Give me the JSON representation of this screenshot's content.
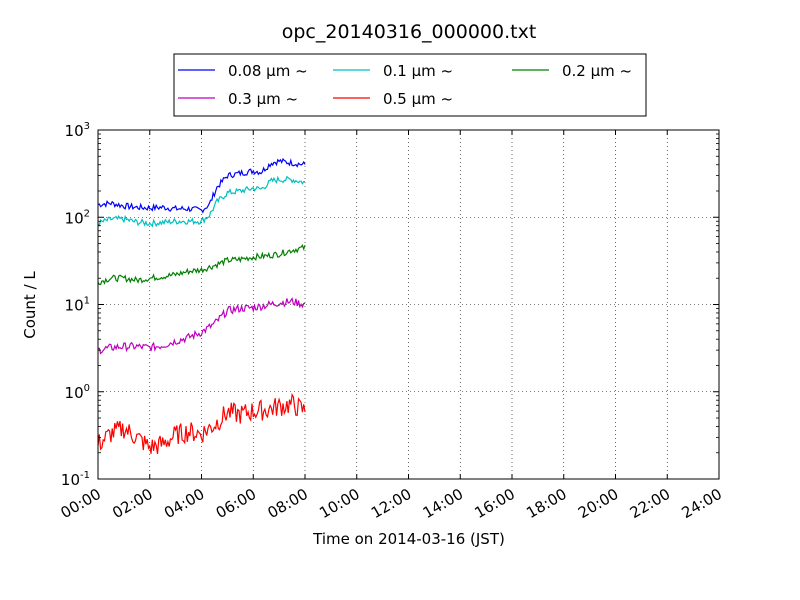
{
  "chart_data": {
    "type": "line",
    "title": "opc_20140316_000000.txt",
    "xlabel": "Time on 2014-03-16 (JST)",
    "ylabel": "Count / L",
    "xlim_hours": [
      0,
      24
    ],
    "x_tick_labels": [
      "00:00",
      "02:00",
      "04:00",
      "06:00",
      "08:00",
      "10:00",
      "12:00",
      "14:00",
      "16:00",
      "18:00",
      "20:00",
      "22:00",
      "24:00"
    ],
    "y_scale": "log",
    "ylim": [
      0.1,
      1000
    ],
    "y_tick_labels": [
      {
        "base": "10",
        "exp": "-1"
      },
      {
        "base": "10",
        "exp": "0"
      },
      {
        "base": "10",
        "exp": "1"
      },
      {
        "base": "10",
        "exp": "2"
      },
      {
        "base": "10",
        "exp": "3"
      }
    ],
    "grid": true,
    "legend_position": "top-center",
    "legend_unit_suffix": "μm ~",
    "series": [
      {
        "name": "0.08",
        "color": "#0000ff",
        "x": [
          0,
          0.5,
          1,
          1.5,
          2,
          2.5,
          3,
          3.5,
          4,
          4.3,
          4.6,
          5,
          5.5,
          6,
          6.3,
          6.7,
          7,
          7.5,
          8
        ],
        "y": [
          140,
          145,
          135,
          130,
          128,
          130,
          125,
          125,
          120,
          140,
          220,
          300,
          320,
          340,
          330,
          420,
          440,
          420,
          400
        ]
      },
      {
        "name": "0.1",
        "color": "#00bfbf",
        "x": [
          0,
          0.5,
          1,
          1.5,
          2,
          2.5,
          3,
          3.5,
          4,
          4.3,
          4.6,
          5,
          5.5,
          6,
          6.3,
          6.7,
          7,
          7.5,
          8
        ],
        "y": [
          85,
          95,
          95,
          88,
          85,
          87,
          90,
          90,
          90,
          105,
          150,
          190,
          200,
          215,
          210,
          260,
          270,
          270,
          250
        ]
      },
      {
        "name": "0.2",
        "color": "#008000",
        "x": [
          0,
          0.5,
          1,
          1.5,
          2,
          2.5,
          3,
          3.5,
          4,
          4.5,
          5,
          5.5,
          6,
          6.5,
          7,
          7.5,
          8
        ],
        "y": [
          18,
          20,
          20,
          19,
          20,
          21,
          22,
          24,
          25,
          28,
          32,
          33,
          35,
          36,
          38,
          42,
          45
        ]
      },
      {
        "name": "0.3",
        "color": "#bf00bf",
        "x": [
          0,
          0.5,
          1,
          1.5,
          2,
          2.5,
          3,
          3.5,
          4,
          4.5,
          5,
          5.5,
          6,
          6.5,
          7,
          7.5,
          8
        ],
        "y": [
          3.0,
          3.2,
          3.3,
          3.3,
          3.2,
          3.4,
          3.8,
          4.2,
          4.8,
          6.0,
          8.5,
          9.0,
          9.2,
          9.8,
          10.5,
          10.8,
          10
        ]
      },
      {
        "name": "0.5",
        "color": "#ff0000",
        "x": [
          0,
          0.5,
          1,
          1.5,
          2,
          2.5,
          3,
          3.5,
          4,
          4.5,
          5,
          5.5,
          6,
          6.5,
          7,
          7.5,
          8
        ],
        "y": [
          0.25,
          0.33,
          0.38,
          0.3,
          0.23,
          0.25,
          0.32,
          0.35,
          0.33,
          0.42,
          0.58,
          0.55,
          0.6,
          0.62,
          0.68,
          0.72,
          0.6
        ]
      }
    ]
  }
}
